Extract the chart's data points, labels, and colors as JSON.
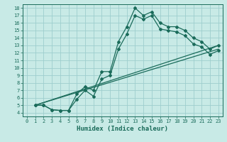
{
  "title": "",
  "xlabel": "Humidex (Indice chaleur)",
  "bg_color": "#c8eae6",
  "line_color": "#1a6b5a",
  "grid_color": "#9ecece",
  "xlim": [
    -0.5,
    23.5
  ],
  "ylim": [
    3.5,
    18.5
  ],
  "xticks": [
    0,
    1,
    2,
    3,
    4,
    5,
    6,
    7,
    8,
    9,
    10,
    11,
    12,
    13,
    14,
    15,
    16,
    17,
    18,
    19,
    20,
    21,
    22,
    23
  ],
  "yticks": [
    4,
    5,
    6,
    7,
    8,
    9,
    10,
    11,
    12,
    13,
    14,
    15,
    16,
    17,
    18
  ],
  "line1_x": [
    1,
    2,
    3,
    4,
    5,
    6,
    7,
    8,
    9,
    10,
    11,
    12,
    13,
    14,
    15,
    16,
    17,
    18,
    19,
    20,
    21,
    22,
    23
  ],
  "line1_y": [
    5.0,
    5.0,
    4.4,
    4.3,
    4.3,
    6.5,
    7.5,
    7.0,
    9.5,
    9.5,
    13.5,
    15.5,
    18.0,
    17.0,
    17.5,
    16.0,
    15.5,
    15.5,
    15.0,
    14.0,
    13.5,
    12.5,
    13.0
  ],
  "line2_x": [
    1,
    2,
    3,
    4,
    5,
    6,
    7,
    8,
    9,
    10,
    11,
    12,
    13,
    14,
    15,
    16,
    17,
    18,
    19,
    20,
    21,
    22,
    23
  ],
  "line2_y": [
    5.0,
    5.0,
    4.4,
    4.3,
    4.3,
    5.8,
    7.0,
    6.2,
    8.5,
    9.0,
    12.5,
    14.5,
    17.0,
    16.5,
    17.0,
    15.2,
    15.0,
    14.8,
    14.3,
    13.2,
    12.8,
    11.8,
    12.3
  ],
  "line3_x": [
    1,
    23
  ],
  "line3_y": [
    5.0,
    12.5
  ],
  "line4_x": [
    1,
    23
  ],
  "line4_y": [
    5.0,
    13.0
  ]
}
